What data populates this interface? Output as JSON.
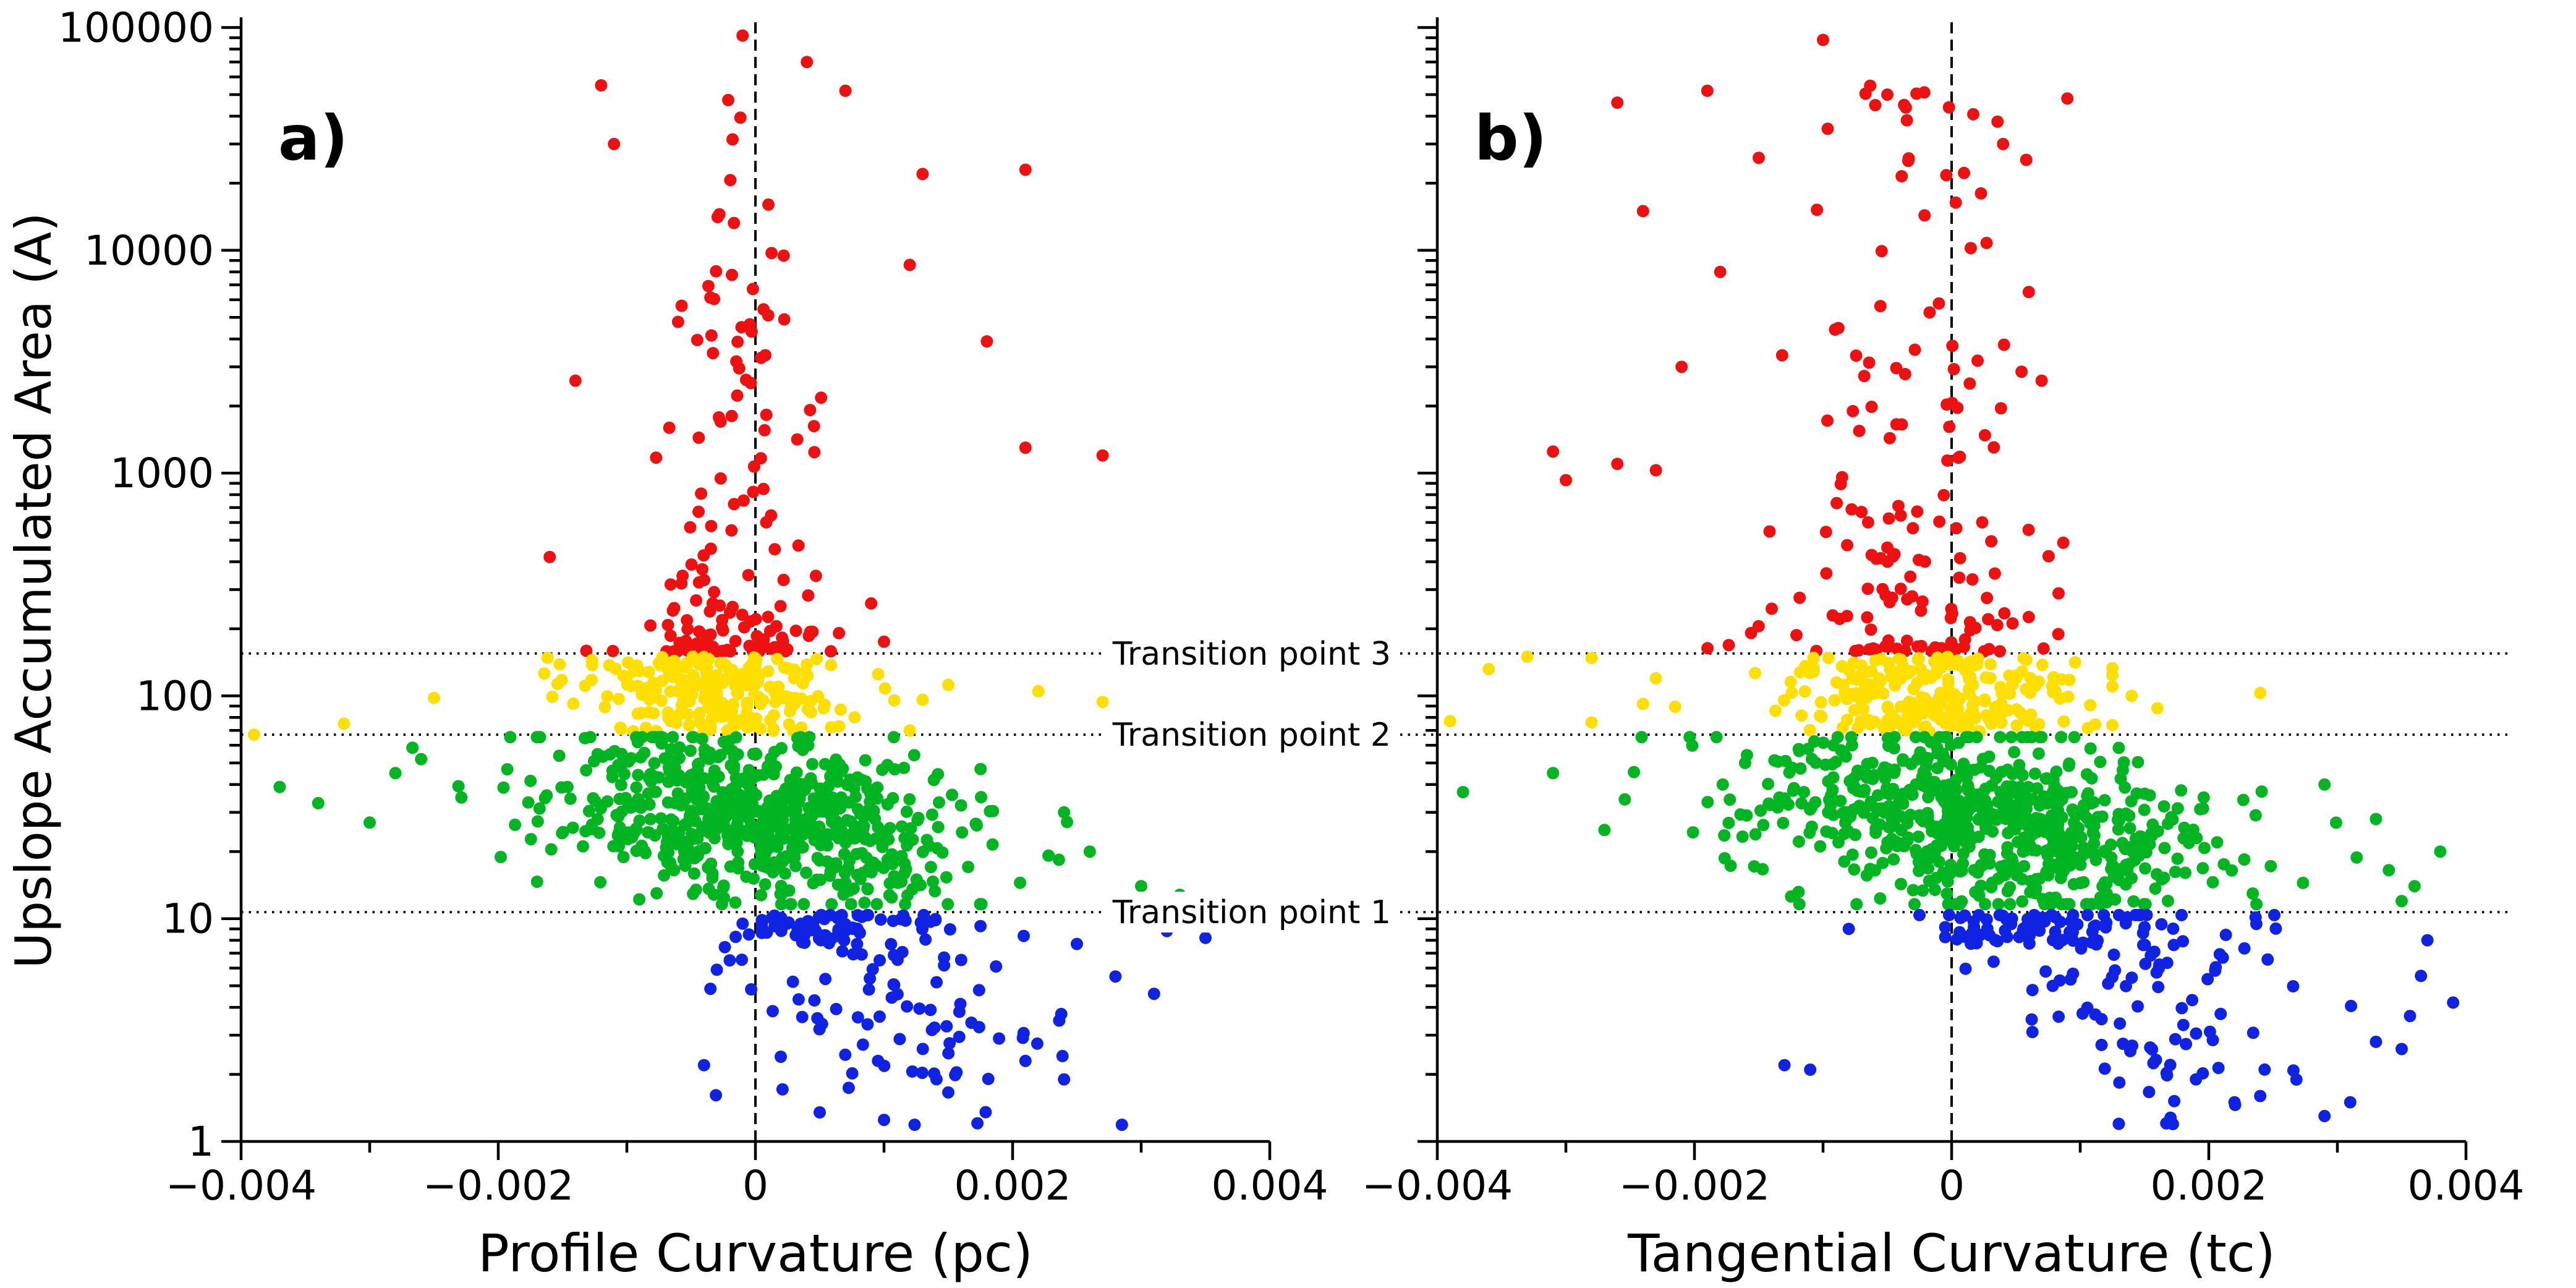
{
  "chart_data": {
    "type": "scatter",
    "title": "",
    "ylabel": "Upslope Accumulated Area (A)",
    "y_scale": "log",
    "ylim": [
      1,
      100000
    ],
    "xlim": [
      -0.004,
      0.004
    ],
    "grid": "off",
    "legend": "none",
    "seed": 1337,
    "marker_shape": "circle",
    "x_ticks": {
      "values": [
        -0.004,
        -0.002,
        0,
        0.002,
        0.004
      ],
      "labels": [
        "−0.004",
        "−0.002",
        "0",
        "0.002",
        "0.004"
      ],
      "minor_values": [
        -0.003,
        -0.001,
        0.001,
        0.003
      ]
    },
    "y_ticks": {
      "values": [
        1,
        10,
        100,
        1000,
        10000,
        100000
      ],
      "labels": [
        "1",
        "10",
        "100",
        "1000",
        "10000",
        "100000"
      ],
      "minor_subs": [
        2,
        3,
        4,
        5,
        6,
        7,
        8,
        9
      ]
    },
    "zero_line_x": 0,
    "transition_lines": [
      {
        "label": "Transition point 1",
        "value": 10.7
      },
      {
        "label": "Transition point 2",
        "value": 67
      },
      {
        "label": "Transition point 3",
        "value": 155
      }
    ],
    "class_colors": {
      "red": "#ee1111",
      "yellow": "#ffdf00",
      "green": "#00b422",
      "blue": "#1022e2"
    },
    "panels": [
      {
        "id": "a",
        "letter": "a)",
        "xlabel": "Profile Curvature (pc)",
        "classes": [
          {
            "name": "red",
            "color": "red",
            "n": 150,
            "x_mean": -0.00013,
            "x_sd": 0.00042,
            "x_clip": [
              -0.0017,
              0.001
            ],
            "y_mode": "power",
            "logA_base": 2.2,
            "logA_range": 2.55,
            "power": 2.5,
            "taper": 0.6,
            "outliers": [
              [
                -0.0001,
                92000
              ],
              [
                -0.0012,
                55000
              ],
              [
                0.0007,
                52000
              ],
              [
                -0.0011,
                30000
              ],
              [
                0.0004,
                70000
              ],
              [
                0.0013,
                22000
              ],
              [
                0.0012,
                8600
              ],
              [
                0.0021,
                23000
              ],
              [
                0.0021,
                1300
              ],
              [
                0.0027,
                1200
              ],
              [
                0.0018,
                3900
              ],
              [
                -0.0014,
                2600
              ],
              [
                -0.0016,
                420
              ],
              [
                0.0009,
                260
              ],
              [
                0.001,
                175
              ]
            ]
          },
          {
            "name": "yellow",
            "color": "yellow",
            "n": 235,
            "x_mean": -0.00028,
            "x_sd": 0.00052,
            "x_clip": [
              -0.00215,
              0.00108
            ],
            "y_mode": "uniform",
            "logA_min": 1.835,
            "logA_max": 2.18,
            "outliers": [
              [
                -0.0039,
                67
              ],
              [
                -0.0032,
                75
              ],
              [
                0.0013,
                96
              ],
              [
                0.0015,
                112
              ],
              [
                0.0022,
                105
              ],
              [
                0.0027,
                94
              ],
              [
                -0.0025,
                98
              ],
              [
                0.0012,
                70
              ]
            ]
          },
          {
            "name": "green",
            "color": "green",
            "n": 680,
            "x_mean": 4e-05,
            "x_sd": 0.00082,
            "x_clip": [
              -0.00295,
              0.00255
            ],
            "y_mode": "trend",
            "logA_mean0": 1.45,
            "logA_slope": -62,
            "logA_sd": 0.185,
            "logA_clip": [
              1.065,
              1.815
            ],
            "outliers": [
              [
                -0.0037,
                39
              ],
              [
                -0.0034,
                33
              ],
              [
                -0.003,
                27
              ],
              [
                -0.0028,
                45
              ],
              [
                -0.0026,
                52
              ],
              [
                0.0024,
                30
              ],
              [
                0.0026,
                20
              ],
              [
                0.0028,
                12
              ],
              [
                0.003,
                14
              ],
              [
                0.0033,
                12.8
              ]
            ]
          },
          {
            "name": "blue-upper",
            "color": "blue",
            "n": 62,
            "x_mean": 0.0006,
            "x_sd": 0.0004,
            "x_clip": [
              5e-05,
              0.0014
            ],
            "y_mode": "uniform",
            "logA_min": 0.885,
            "logA_max": 1.016,
            "outliers": []
          },
          {
            "name": "blue",
            "color": "blue",
            "n": 95,
            "x_mean": 0.00115,
            "x_sd": 0.00065,
            "x_clip": [
              -0.00035,
              0.00285
            ],
            "y_mode": "trend",
            "logA_mean0": 0.75,
            "logA_slope": -95,
            "logA_sd": 0.28,
            "logA_clip": [
              0.075,
              1.016
            ],
            "outliers": [
              [
                -0.0004,
                2.2
              ],
              [
                -0.0003,
                5.9
              ],
              [
                0.0005,
                1.35
              ],
              [
                0.001,
                1.25
              ],
              [
                0.0015,
                1.66
              ],
              [
                0.0021,
                2.3
              ],
              [
                0.0024,
                1.9
              ],
              [
                0.0025,
                7.7
              ],
              [
                0.0028,
                5.5
              ],
              [
                0.0031,
                4.6
              ],
              [
                0.0032,
                8.8
              ],
              [
                0.0035,
                8.2
              ],
              [
                -0.0001,
                9.5
              ],
              [
                -0.0002,
                6.5
              ]
            ]
          }
        ]
      },
      {
        "id": "b",
        "letter": "b)",
        "xlabel": "Tangential Curvature (tc)",
        "classes": [
          {
            "name": "red",
            "color": "red",
            "n": 160,
            "x_mean": -0.0004,
            "x_sd": 0.00058,
            "x_clip": [
              -0.00225,
              0.00095
            ],
            "y_mode": "power",
            "logA_base": 2.2,
            "logA_range": 2.55,
            "power": 2.4,
            "taper": 0.45,
            "outliers": [
              [
                -0.001,
                88000
              ],
              [
                -0.0005,
                50000
              ],
              [
                0.0009,
                48000
              ],
              [
                -0.0026,
                46000
              ],
              [
                -0.0019,
                52000
              ],
              [
                -0.0024,
                15000
              ],
              [
                -0.0031,
                1250
              ],
              [
                -0.003,
                930
              ],
              [
                -0.0026,
                1100
              ],
              [
                -0.0023,
                1030
              ],
              [
                0.0006,
                6500
              ],
              [
                0.0007,
                2600
              ],
              [
                0.0004,
                30000
              ],
              [
                -0.0018,
                8000
              ],
              [
                -0.0021,
                3000
              ],
              [
                -0.0015,
                26000
              ]
            ]
          },
          {
            "name": "yellow",
            "color": "yellow",
            "n": 245,
            "x_mean": -0.00012,
            "x_sd": 0.00058,
            "x_clip": [
              -0.00215,
              0.00125
            ],
            "y_mode": "uniform",
            "logA_min": 1.835,
            "logA_max": 2.18,
            "outliers": [
              [
                -0.0039,
                77
              ],
              [
                -0.0036,
                132
              ],
              [
                -0.0033,
                150
              ],
              [
                -0.0028,
                148
              ],
              [
                -0.0028,
                76
              ],
              [
                -0.0024,
                92
              ],
              [
                0.0014,
                100
              ],
              [
                0.0024,
                103
              ],
              [
                0.0016,
                88
              ],
              [
                -0.0023,
                120
              ]
            ]
          },
          {
            "name": "green",
            "color": "green",
            "n": 700,
            "x_mean": 0.00028,
            "x_sd": 0.00095,
            "x_clip": [
              -0.00285,
              0.00315
            ],
            "y_mode": "trend",
            "logA_mean0": 1.47,
            "logA_slope": -68,
            "logA_sd": 0.185,
            "logA_clip": [
              1.065,
              1.815
            ],
            "outliers": [
              [
                -0.0038,
                37
              ],
              [
                -0.0031,
                45
              ],
              [
                0.0029,
                40
              ],
              [
                0.0033,
                28
              ],
              [
                0.0034,
                16.5
              ],
              [
                0.0036,
                14
              ],
              [
                0.0038,
                20
              ],
              [
                -0.0027,
                25
              ],
              [
                0.0035,
                12
              ]
            ]
          },
          {
            "name": "blue-upper",
            "color": "blue",
            "n": 60,
            "x_mean": 0.0006,
            "x_sd": 0.00042,
            "x_clip": [
              -5e-05,
              0.0015
            ],
            "y_mode": "uniform",
            "logA_min": 0.885,
            "logA_max": 1.016,
            "outliers": []
          },
          {
            "name": "blue",
            "color": "blue",
            "n": 110,
            "x_mean": 0.0015,
            "x_sd": 0.00075,
            "x_clip": [
              -0.00025,
              0.00365
            ],
            "y_mode": "trend",
            "logA_mean0": 0.8,
            "logA_slope": -80,
            "logA_sd": 0.27,
            "logA_clip": [
              0.075,
              1.016
            ],
            "outliers": [
              [
                -0.0013,
                2.2
              ],
              [
                -0.0011,
                2.1
              ],
              [
                0.0039,
                4.2
              ],
              [
                0.0035,
                2.6
              ],
              [
                0.0033,
                2.8
              ],
              [
                0.0031,
                1.5
              ],
              [
                0.0029,
                1.3
              ],
              [
                0.0024,
                1.6
              ],
              [
                -0.0008,
                9.0
              ],
              [
                0.0037,
                8.0
              ],
              [
                0.0022,
                1.5
              ],
              [
                0.0019,
                1.9
              ],
              [
                0.0013,
                1.2
              ]
            ]
          }
        ]
      }
    ]
  }
}
